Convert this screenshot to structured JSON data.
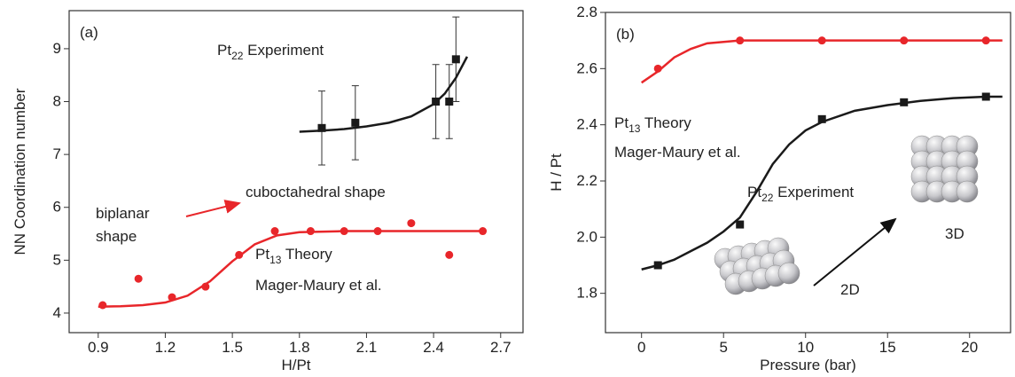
{
  "chart_data": [
    {
      "type": "scatter",
      "panel": "(a)",
      "x_label": "H/Pt",
      "y_label": "NN Coordination number",
      "xlim": [
        0.77,
        2.8
      ],
      "ylim": [
        3.63,
        9.72
      ],
      "xticks": [
        0.9,
        1.2,
        1.5,
        1.8,
        2.1,
        2.4,
        2.7
      ],
      "yticks": [
        4,
        5,
        6,
        7,
        8,
        9
      ],
      "series": [
        {
          "color": "#1a1a1a",
          "marker": "square",
          "x": [
            1.9,
            2.05,
            2.41,
            2.47,
            2.5
          ],
          "values": [
            7.5,
            7.6,
            8.0,
            8.0,
            8.8
          ],
          "errors": [
            0.7,
            0.7,
            0.7,
            0.7,
            0.8
          ]
        },
        {
          "color": "#1a1a1a",
          "marker": "line",
          "x": [
            1.8,
            1.9,
            2.0,
            2.1,
            2.2,
            2.3,
            2.4,
            2.45,
            2.5,
            2.55
          ],
          "values": [
            7.43,
            7.45,
            7.48,
            7.53,
            7.6,
            7.72,
            7.95,
            8.15,
            8.45,
            8.85
          ]
        },
        {
          "color": "#e8262a",
          "marker": "circle",
          "x": [
            0.92,
            1.08,
            1.23,
            1.38,
            1.53,
            1.69,
            1.85,
            2.0,
            2.15,
            2.3,
            2.47,
            2.62
          ],
          "values": [
            4.15,
            4.65,
            4.3,
            4.5,
            5.1,
            5.55,
            5.55,
            5.55,
            5.55,
            5.7,
            5.1,
            5.55
          ]
        },
        {
          "color": "#e8262a",
          "marker": "line",
          "x": [
            0.9,
            1.0,
            1.1,
            1.2,
            1.3,
            1.4,
            1.5,
            1.6,
            1.7,
            1.8,
            2.0,
            2.2,
            2.4,
            2.62
          ],
          "values": [
            4.12,
            4.13,
            4.15,
            4.2,
            4.33,
            4.6,
            4.98,
            5.3,
            5.47,
            5.53,
            5.55,
            5.55,
            5.55,
            5.55
          ]
        }
      ],
      "annotations": [
        [
          "Pt",
          "22",
          " Experiment"
        ],
        "biplanar",
        "shape",
        "cuboctahedral shape",
        [
          "Pt",
          "13",
          " Theory"
        ],
        "Mager-Maury et al."
      ]
    },
    {
      "type": "scatter",
      "panel": "(b)",
      "x_label": "Pressure (bar)",
      "y_label": "H / Pt",
      "xlim": [
        -2.2,
        22.5
      ],
      "ylim": [
        1.66,
        2.8
      ],
      "xticks": [
        0,
        5,
        10,
        15,
        20
      ],
      "yticks": [
        1.8,
        {
          "value": 2,
          "label": "2.0"
        },
        2.2,
        2.4,
        2.6,
        2.8
      ],
      "series": [
        {
          "color": "#e8262a",
          "marker": "circle",
          "x": [
            1,
            6,
            11,
            16,
            21
          ],
          "values": [
            2.6,
            2.7,
            2.7,
            2.7,
            2.7
          ]
        },
        {
          "color": "#e8262a",
          "marker": "line",
          "x": [
            0,
            1,
            2,
            3,
            4,
            5,
            6,
            8,
            10,
            15,
            20,
            22
          ],
          "values": [
            2.55,
            2.59,
            2.64,
            2.67,
            2.69,
            2.695,
            2.7,
            2.7,
            2.7,
            2.7,
            2.7,
            2.7
          ]
        },
        {
          "color": "#1a1a1a",
          "marker": "square",
          "x": [
            1,
            6,
            11,
            16,
            21
          ],
          "values": [
            1.9,
            2.045,
            2.42,
            2.48,
            2.5
          ]
        },
        {
          "color": "#1a1a1a",
          "marker": "line",
          "x": [
            0,
            1,
            2,
            3,
            4,
            5,
            6,
            7,
            8,
            9,
            10,
            11,
            13,
            15,
            17,
            19,
            21,
            22
          ],
          "values": [
            1.885,
            1.9,
            1.92,
            1.95,
            1.98,
            2.02,
            2.07,
            2.16,
            2.26,
            2.33,
            2.38,
            2.41,
            2.45,
            2.47,
            2.485,
            2.495,
            2.5,
            2.5
          ]
        }
      ],
      "annotations": [
        [
          "Pt",
          "13",
          " Theory"
        ],
        "Mager-Maury et al.",
        [
          "Pt",
          "22",
          " Experiment"
        ],
        "2D",
        "3D"
      ]
    }
  ]
}
